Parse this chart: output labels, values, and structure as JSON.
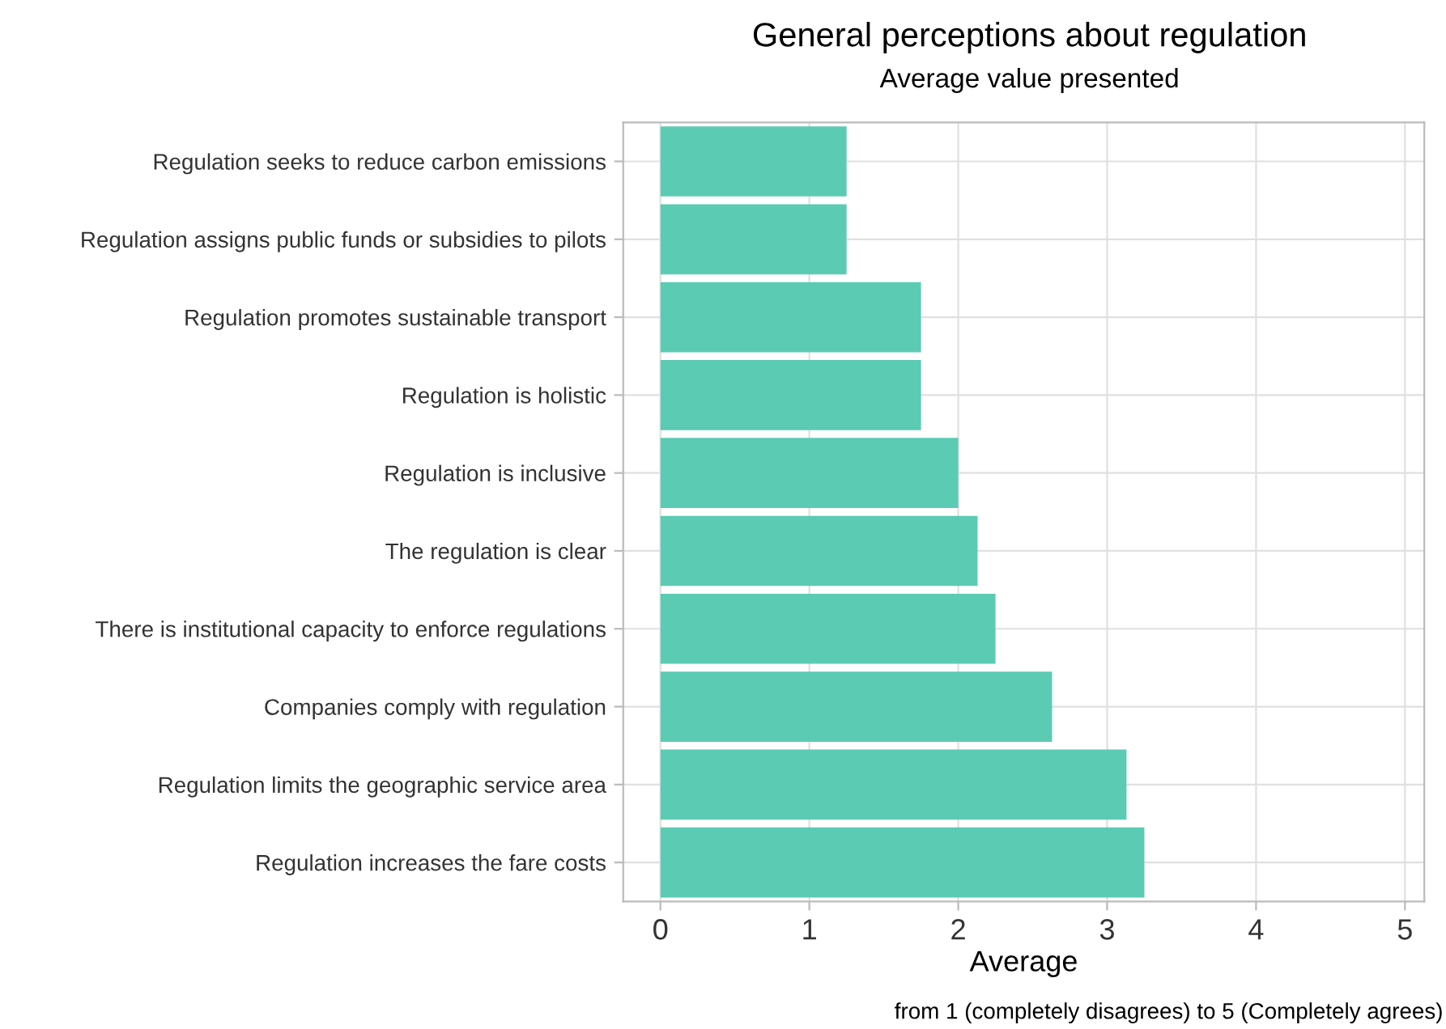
{
  "chart_data": {
    "type": "bar",
    "orientation": "horizontal",
    "title": "General perceptions about regulation",
    "subtitle": "Average value presented",
    "xlabel": "Average",
    "annotations": [
      "from 1 (completely disagrees) to 5 (Completely agrees)"
    ],
    "categories": [
      "Regulation seeks to reduce carbon emissions",
      "Regulation assigns public funds or subsidies to pilots",
      "Regulation promotes sustainable transport",
      "Regulation is holistic",
      "Regulation is inclusive",
      "The regulation is clear",
      "There is institutional capacity to enforce regulations",
      "Companies comply with regulation",
      "Regulation limits the geographic service area",
      "Regulation increases the fare costs"
    ],
    "values": [
      1.25,
      1.25,
      1.75,
      1.75,
      2.0,
      2.13,
      2.25,
      2.63,
      3.13,
      3.25
    ],
    "color": "#5ccbb3",
    "xlim": [
      -0.25,
      5.13
    ],
    "xticks": [
      0,
      1,
      2,
      3,
      4,
      5
    ],
    "grid": true
  }
}
